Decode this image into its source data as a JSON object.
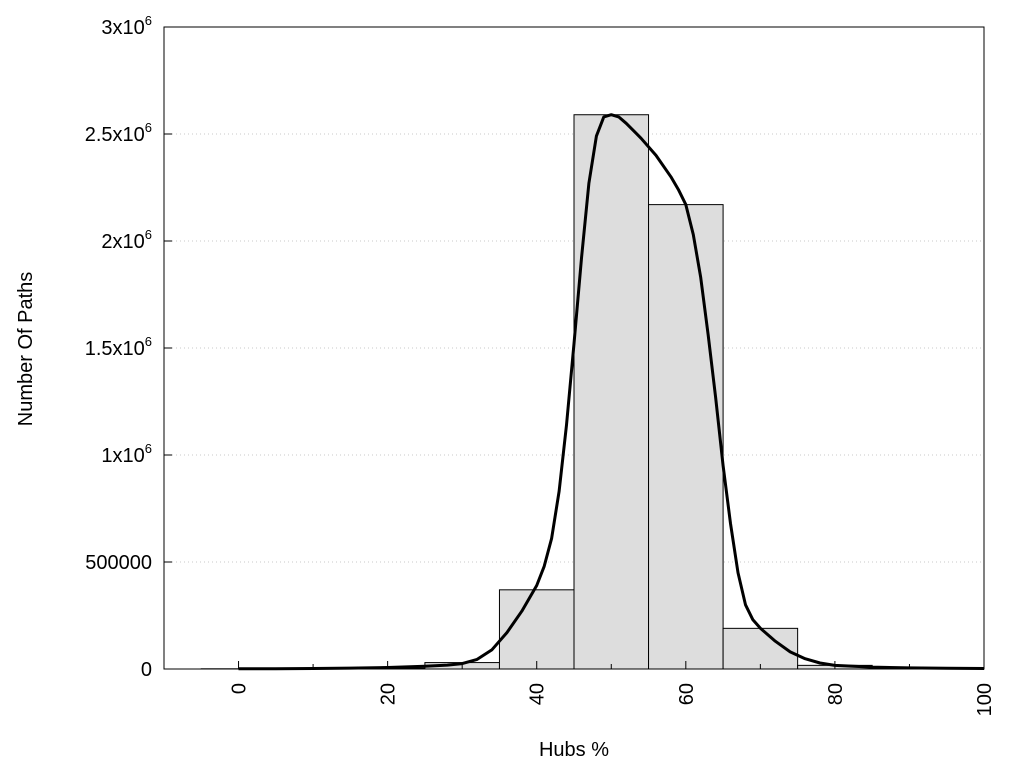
{
  "chart_data": {
    "type": "bar",
    "xlabel": "Hubs %",
    "ylabel": "Number Of Paths",
    "xlim": [
      -10,
      100
    ],
    "ylim": [
      0,
      3000000
    ],
    "grid": true,
    "x_ticks": [
      {
        "value": 0,
        "label": "0"
      },
      {
        "value": 20,
        "label": "20"
      },
      {
        "value": 40,
        "label": "40"
      },
      {
        "value": 60,
        "label": "60"
      },
      {
        "value": 80,
        "label": "80"
      },
      {
        "value": 100,
        "label": "100"
      }
    ],
    "y_ticks": [
      {
        "value": 0,
        "base": "0",
        "exp": ""
      },
      {
        "value": 500000,
        "base": "500000",
        "exp": ""
      },
      {
        "value": 1000000,
        "base": "1x10",
        "exp": "6"
      },
      {
        "value": 1500000,
        "base": "1.5x10",
        "exp": "6"
      },
      {
        "value": 2000000,
        "base": "2x10",
        "exp": "6"
      },
      {
        "value": 2500000,
        "base": "2.5x10",
        "exp": "6"
      },
      {
        "value": 3000000,
        "base": "3x10",
        "exp": "6"
      }
    ],
    "bin_width": 10,
    "bins": [
      {
        "center": 0,
        "value": 1000
      },
      {
        "center": 10,
        "value": 1500
      },
      {
        "center": 20,
        "value": 4000
      },
      {
        "center": 30,
        "value": 30000
      },
      {
        "center": 40,
        "value": 370000
      },
      {
        "center": 50,
        "value": 2590000
      },
      {
        "center": 60,
        "value": 2170000
      },
      {
        "center": 70,
        "value": 190000
      },
      {
        "center": 80,
        "value": 17000
      },
      {
        "center": 90,
        "value": 3000
      }
    ],
    "curve": [
      [
        0,
        1000
      ],
      [
        5,
        1500
      ],
      [
        10,
        2500
      ],
      [
        15,
        4000
      ],
      [
        20,
        7000
      ],
      [
        25,
        13000
      ],
      [
        28,
        18000
      ],
      [
        30,
        25000
      ],
      [
        32,
        45000
      ],
      [
        34,
        90000
      ],
      [
        36,
        170000
      ],
      [
        38,
        270000
      ],
      [
        40,
        390000
      ],
      [
        41,
        480000
      ],
      [
        42,
        610000
      ],
      [
        43,
        830000
      ],
      [
        44,
        1140000
      ],
      [
        45,
        1520000
      ],
      [
        46,
        1920000
      ],
      [
        47,
        2270000
      ],
      [
        48,
        2490000
      ],
      [
        49,
        2580000
      ],
      [
        50,
        2590000
      ],
      [
        51,
        2580000
      ],
      [
        52,
        2550000
      ],
      [
        54,
        2480000
      ],
      [
        56,
        2400000
      ],
      [
        58,
        2300000
      ],
      [
        59,
        2240000
      ],
      [
        60,
        2170000
      ],
      [
        61,
        2030000
      ],
      [
        62,
        1830000
      ],
      [
        63,
        1560000
      ],
      [
        64,
        1270000
      ],
      [
        65,
        950000
      ],
      [
        66,
        680000
      ],
      [
        67,
        450000
      ],
      [
        68,
        300000
      ],
      [
        69,
        230000
      ],
      [
        70,
        190000
      ],
      [
        72,
        130000
      ],
      [
        74,
        80000
      ],
      [
        76,
        48000
      ],
      [
        78,
        28000
      ],
      [
        80,
        17000
      ],
      [
        85,
        9000
      ],
      [
        90,
        5000
      ],
      [
        95,
        3500
      ],
      [
        100,
        2500
      ]
    ],
    "colors": {
      "bar_fill": "#dddddd",
      "bar_stroke": "#000000",
      "curve": "#000000",
      "grid": "#c8c8c8"
    }
  }
}
